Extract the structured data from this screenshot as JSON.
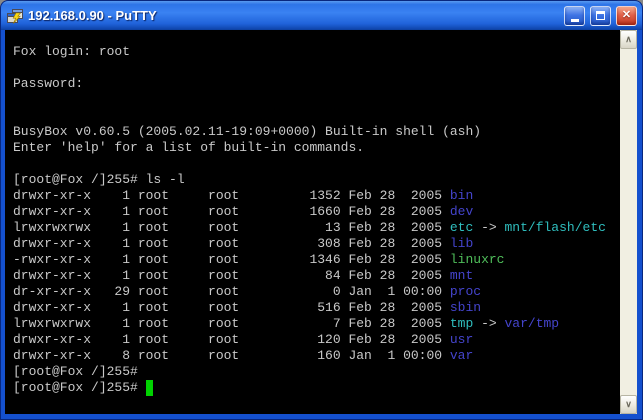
{
  "window": {
    "title": "192.168.0.90 - PuTTY",
    "controls": {
      "minimize_label": "minimize",
      "maximize_label": "maximize",
      "close_label": "close",
      "close_glyph": "✕"
    }
  },
  "terminal": {
    "colors": {
      "background": "#000000",
      "foreground": "#C9C9C9",
      "directory": "#4444CC",
      "symlink": "#2FBEBE",
      "executable": "#4FBE5A",
      "cursor": "#00D200"
    },
    "pre_lines": [
      "Fox login: root",
      "",
      "Password:",
      "",
      "",
      "BusyBox v0.60.5 (2005.02.11-19:09+0000) Built-in shell (ash)",
      "Enter 'help' for a list of built-in commands.",
      "",
      "[root@Fox /]255# ls -l"
    ],
    "listing": [
      {
        "perms": "drwxr-xr-x",
        "links": 1,
        "owner": "root",
        "group": "root",
        "size": 1352,
        "date": "Feb 28  2005",
        "name": "bin",
        "name_type": "directory"
      },
      {
        "perms": "drwxr-xr-x",
        "links": 1,
        "owner": "root",
        "group": "root",
        "size": 1660,
        "date": "Feb 28  2005",
        "name": "dev",
        "name_type": "directory"
      },
      {
        "perms": "lrwxrwxrwx",
        "links": 1,
        "owner": "root",
        "group": "root",
        "size": 13,
        "date": "Feb 28  2005",
        "name": "etc",
        "name_type": "symlink",
        "target": "mnt/flash/etc",
        "target_type": "symlink"
      },
      {
        "perms": "drwxr-xr-x",
        "links": 1,
        "owner": "root",
        "group": "root",
        "size": 308,
        "date": "Feb 28  2005",
        "name": "lib",
        "name_type": "directory"
      },
      {
        "perms": "-rwxr-xr-x",
        "links": 1,
        "owner": "root",
        "group": "root",
        "size": 1346,
        "date": "Feb 28  2005",
        "name": "linuxrc",
        "name_type": "executable"
      },
      {
        "perms": "drwxr-xr-x",
        "links": 1,
        "owner": "root",
        "group": "root",
        "size": 84,
        "date": "Feb 28  2005",
        "name": "mnt",
        "name_type": "directory"
      },
      {
        "perms": "dr-xr-xr-x",
        "links": 29,
        "owner": "root",
        "group": "root",
        "size": 0,
        "date": "Jan  1 00:00",
        "name": "proc",
        "name_type": "directory"
      },
      {
        "perms": "drwxr-xr-x",
        "links": 1,
        "owner": "root",
        "group": "root",
        "size": 516,
        "date": "Feb 28  2005",
        "name": "sbin",
        "name_type": "directory"
      },
      {
        "perms": "lrwxrwxrwx",
        "links": 1,
        "owner": "root",
        "group": "root",
        "size": 7,
        "date": "Feb 28  2005",
        "name": "tmp",
        "name_type": "symlink",
        "target": "var/tmp",
        "target_type": "directory"
      },
      {
        "perms": "drwxr-xr-x",
        "links": 1,
        "owner": "root",
        "group": "root",
        "size": 120,
        "date": "Feb 28  2005",
        "name": "usr",
        "name_type": "directory"
      },
      {
        "perms": "drwxr-xr-x",
        "links": 8,
        "owner": "root",
        "group": "root",
        "size": 160,
        "date": "Jan  1 00:00",
        "name": "var",
        "name_type": "directory"
      }
    ],
    "post_lines": [
      "[root@Fox /]255#"
    ],
    "prompt": "[root@Fox /]255# "
  },
  "scrollbar": {
    "up_glyph": "∧",
    "down_glyph": "∨"
  }
}
